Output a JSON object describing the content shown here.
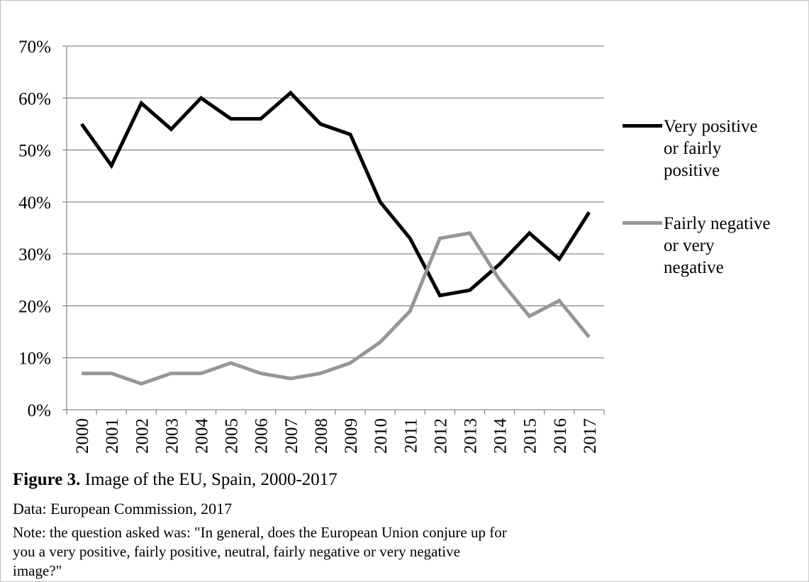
{
  "chart_data": {
    "type": "line",
    "categories": [
      "2000",
      "2001",
      "2002",
      "2003",
      "2004",
      "2005",
      "2006",
      "2007",
      "2008",
      "2009",
      "2010",
      "2011",
      "2012",
      "2013",
      "2014",
      "2015",
      "2016",
      "2017"
    ],
    "series": [
      {
        "name": "Very positive or fairly positive",
        "legend_lines": [
          "Very positive",
          "or fairly",
          "positive"
        ],
        "color": "#000000",
        "values": [
          55,
          47,
          59,
          54,
          60,
          56,
          56,
          61,
          55,
          53,
          40,
          33,
          22,
          23,
          28,
          34,
          29,
          38
        ]
      },
      {
        "name": "Fairly negative or very negative",
        "legend_lines": [
          "Fairly negative",
          "or very",
          "negative"
        ],
        "color": "#969696",
        "values": [
          7,
          7,
          5,
          7,
          7,
          9,
          7,
          6,
          7,
          9,
          13,
          19,
          33,
          34,
          25,
          18,
          21,
          14
        ]
      }
    ],
    "ylim": [
      0,
      70
    ],
    "yticks": [
      "0%",
      "10%",
      "20%",
      "30%",
      "40%",
      "50%",
      "60%",
      "70%"
    ],
    "grid": true,
    "legend": "right"
  },
  "caption": {
    "figure_label": "Figure 3.",
    "figure_title": " Image of the EU, Spain, 2000-2017",
    "data_source": "Data: European Commission, 2017",
    "note_lines": [
      "Note: the question asked was: \"In general, does the European Union conjure up for",
      "you a very positive, fairly positive, neutral, fairly negative or very negative",
      "image?\""
    ]
  }
}
